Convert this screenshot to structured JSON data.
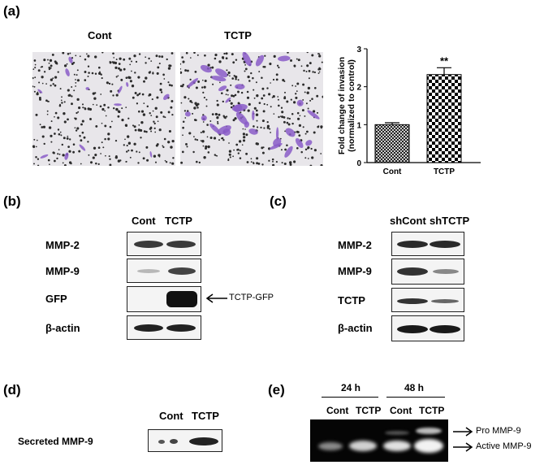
{
  "panels": {
    "a": "(a)",
    "b": "(b)",
    "c": "(c)",
    "d": "(d)",
    "e": "(e)"
  },
  "panel_a": {
    "image_labels": [
      "Cont",
      "TCTP"
    ]
  },
  "chart_data": {
    "type": "bar",
    "categories": [
      "Cont",
      "TCTP"
    ],
    "values": [
      1.0,
      2.32
    ],
    "errors": [
      0.05,
      0.18
    ],
    "ylabel": "Fold change of invasion\n(normalized to control)",
    "ylim": [
      0,
      3
    ],
    "yticks": [
      "0",
      "1",
      "2",
      "3"
    ],
    "annotation": "**",
    "grid": false
  },
  "panel_b": {
    "columns": [
      "Cont",
      "TCTP"
    ],
    "rows": [
      "MMP-2",
      "MMP-9",
      "GFP",
      "β-actin"
    ],
    "arrow_label": "TCTP-GFP"
  },
  "panel_c": {
    "columns": [
      "shCont",
      "shTCTP"
    ],
    "rows": [
      "MMP-2",
      "MMP-9",
      "TCTP",
      "β-actin"
    ]
  },
  "panel_d": {
    "columns": [
      "Cont",
      "TCTP"
    ],
    "row_label": "Secreted MMP-9"
  },
  "panel_e": {
    "time_groups": [
      "24 h",
      "48 h"
    ],
    "columns": [
      "Cont",
      "TCTP",
      "Cont",
      "TCTP"
    ],
    "annotations": [
      "Pro MMP-9",
      "Active MMP-9"
    ]
  },
  "colors": {
    "micrograph_bg": "#e8e6ea",
    "cell_purple": "#8a5cc8",
    "band_dark": "#1a1a1a",
    "gel_bg": "#050505",
    "gel_band": "#d8d8d8"
  }
}
